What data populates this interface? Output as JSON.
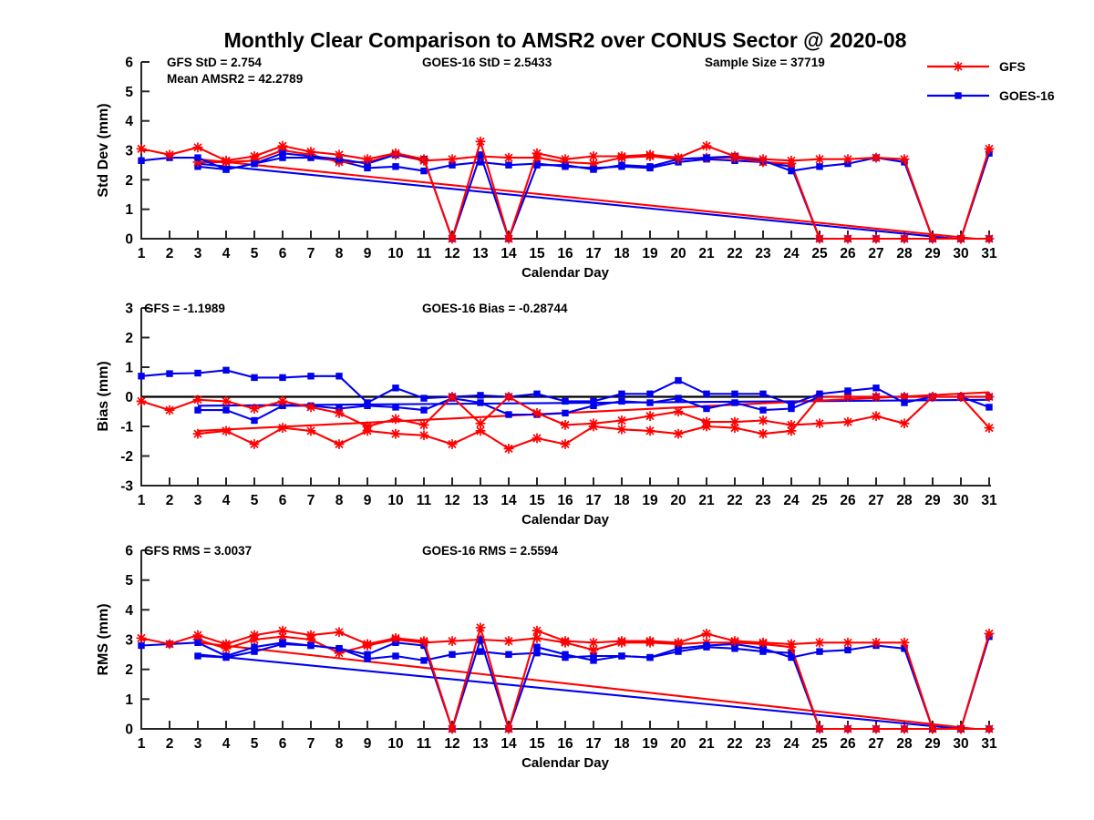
{
  "title": "Monthly Clear Comparison to AMSR2 over CONUS Sector @ 2020-08",
  "colors": {
    "gfs": "#ff0000",
    "goes16": "#0000ee",
    "axis": "#262626",
    "zero_line": "#000000",
    "text": "#000000",
    "background": "#ffffff"
  },
  "legend": {
    "items": [
      {
        "label": "GFS",
        "color": "#ff0000",
        "marker": "asterisk"
      },
      {
        "label": "GOES-16",
        "color": "#0000ee",
        "marker": "square"
      }
    ]
  },
  "x_axis": {
    "label": "Calendar Day",
    "days": [
      1,
      2,
      3,
      4,
      5,
      6,
      7,
      8,
      9,
      10,
      11,
      12,
      13,
      14,
      15,
      16,
      17,
      18,
      19,
      20,
      21,
      22,
      23,
      24,
      25,
      26,
      27,
      28,
      29,
      30,
      31
    ]
  },
  "chart_data": [
    {
      "type": "line",
      "name": "std-dev",
      "ylabel": "Std Dev (mm)",
      "xlabel": "Calendar Day",
      "ylim": [
        0,
        6
      ],
      "yticks": [
        0,
        1,
        2,
        3,
        4,
        5,
        6
      ],
      "grid": false,
      "annotations": [
        {
          "text": "GFS StD = 2.754"
        },
        {
          "text": "Mean AMSR2 = 42.2789"
        },
        {
          "text": "GOES-16 StD = 2.5433"
        },
        {
          "text": "Sample Size = 37719"
        }
      ],
      "series": [
        {
          "name": "GOES-16-trend",
          "color": "#0000ee",
          "marker": "none",
          "x": [
            3,
            29.8
          ],
          "y": [
            2.55,
            0
          ]
        },
        {
          "name": "GFS-trend",
          "color": "#ff0000",
          "marker": "none",
          "x": [
            3,
            30.5
          ],
          "y": [
            2.7,
            0
          ]
        },
        {
          "name": "GOES-16-secondary",
          "color": "#0000ee",
          "marker": "square",
          "x": [
            3,
            4,
            5,
            6,
            7,
            8,
            9,
            10,
            11,
            12,
            13,
            14,
            15,
            16,
            17,
            18,
            19,
            20,
            21,
            22,
            23,
            24,
            25,
            26,
            27,
            28,
            29,
            30,
            31
          ],
          "y": [
            2.45,
            2.35,
            2.55,
            2.75,
            2.75,
            2.65,
            2.4,
            2.45,
            2.3,
            2.5,
            2.6,
            2.5,
            2.55,
            2.45,
            2.4,
            2.45,
            2.4,
            2.6,
            2.7,
            2.65,
            2.6,
            2.45,
            0,
            0,
            0,
            0,
            0,
            0,
            0
          ]
        },
        {
          "name": "GFS-secondary",
          "color": "#ff0000",
          "marker": "asterisk",
          "x": [
            3,
            4,
            5,
            6,
            7,
            8,
            9,
            10,
            11,
            12,
            13,
            14,
            15,
            16,
            17,
            18,
            19,
            20,
            21,
            22,
            23,
            24,
            25,
            26,
            27,
            28,
            29,
            30,
            31
          ],
          "y": [
            2.6,
            2.6,
            2.65,
            3.0,
            2.85,
            2.6,
            2.6,
            2.85,
            2.65,
            2.7,
            2.8,
            2.75,
            2.75,
            2.6,
            2.55,
            2.75,
            2.8,
            2.7,
            2.75,
            2.75,
            2.6,
            2.55,
            0,
            0,
            0,
            0,
            0,
            0,
            0
          ]
        },
        {
          "name": "GOES-16",
          "color": "#0000ee",
          "marker": "square",
          "x": [
            1,
            2,
            3,
            4,
            5,
            6,
            7,
            8,
            9,
            10,
            11,
            12,
            13,
            14,
            15,
            16,
            17,
            18,
            19,
            20,
            21,
            22,
            23,
            24,
            25,
            26,
            27,
            28,
            29,
            30,
            31
          ],
          "y": [
            2.65,
            2.75,
            2.75,
            2.35,
            2.55,
            2.9,
            2.8,
            2.7,
            2.55,
            2.85,
            2.7,
            0,
            2.85,
            0,
            2.5,
            2.5,
            2.35,
            2.5,
            2.45,
            2.7,
            2.75,
            2.8,
            2.65,
            2.3,
            2.45,
            2.55,
            2.75,
            2.6,
            0,
            0,
            2.9
          ]
        },
        {
          "name": "GFS",
          "color": "#ff0000",
          "marker": "asterisk",
          "x": [
            1,
            2,
            3,
            4,
            5,
            6,
            7,
            8,
            9,
            10,
            11,
            12,
            13,
            14,
            15,
            16,
            17,
            18,
            19,
            20,
            21,
            22,
            23,
            24,
            25,
            26,
            27,
            28,
            29,
            30,
            31
          ],
          "y": [
            3.05,
            2.85,
            3.1,
            2.65,
            2.8,
            3.15,
            2.95,
            2.85,
            2.7,
            2.9,
            2.7,
            0,
            3.3,
            0,
            2.9,
            2.7,
            2.8,
            2.8,
            2.85,
            2.75,
            3.15,
            2.8,
            2.7,
            2.65,
            2.7,
            2.7,
            2.75,
            2.7,
            0,
            0,
            3.05
          ]
        }
      ]
    },
    {
      "type": "line",
      "name": "bias",
      "ylabel": "Bias (mm)",
      "xlabel": "Calendar Day",
      "ylim": [
        -3,
        3
      ],
      "yticks": [
        -3,
        -2,
        -1,
        0,
        1,
        2,
        3
      ],
      "grid": false,
      "zero_line": true,
      "annotations": [
        {
          "text": "GFS = -1.1989"
        },
        {
          "text": "GOES-16 Bias = -0.28744"
        }
      ],
      "series": [
        {
          "name": "GOES-16-trend",
          "color": "#0000ee",
          "marker": "none",
          "x": [
            3,
            31
          ],
          "y": [
            -0.3,
            -0.1
          ]
        },
        {
          "name": "GFS-trend",
          "color": "#ff0000",
          "marker": "none",
          "x": [
            3,
            31
          ],
          "y": [
            -1.15,
            0.15
          ]
        },
        {
          "name": "GOES-16-secondary",
          "color": "#0000ee",
          "marker": "square",
          "x": [
            3,
            4,
            5,
            6,
            7,
            8,
            9,
            10,
            11,
            12,
            13,
            14,
            15,
            16,
            17,
            18,
            19,
            20,
            21,
            22,
            23,
            24,
            25,
            26,
            27,
            28,
            29,
            30,
            31
          ],
          "y": [
            -0.45,
            -0.45,
            -0.8,
            -0.3,
            -0.3,
            -0.4,
            -0.3,
            -0.35,
            -0.45,
            -0.05,
            -0.2,
            -0.6,
            -0.6,
            -0.55,
            -0.3,
            -0.15,
            -0.2,
            -0.05,
            -0.4,
            -0.2,
            -0.45,
            -0.4,
            0,
            0,
            0,
            0,
            0,
            0,
            0
          ]
        },
        {
          "name": "GFS-secondary",
          "color": "#ff0000",
          "marker": "asterisk",
          "x": [
            3,
            4,
            5,
            6,
            7,
            8,
            9,
            10,
            11,
            12,
            13,
            14,
            15,
            16,
            17,
            18,
            19,
            20,
            21,
            22,
            23,
            24,
            25,
            26,
            27,
            28,
            29,
            30,
            31
          ],
          "y": [
            -1.25,
            -1.15,
            -1.6,
            -1.05,
            -1.15,
            -1.6,
            -1.15,
            -1.25,
            -1.3,
            -1.6,
            -1.15,
            -1.75,
            -1.4,
            -1.6,
            -1.0,
            -1.1,
            -1.15,
            -1.25,
            -1.0,
            -1.05,
            -1.25,
            -1.15,
            0,
            0,
            0,
            0,
            0,
            0,
            0
          ]
        },
        {
          "name": "GOES-16",
          "color": "#0000ee",
          "marker": "square",
          "x": [
            1,
            2,
            3,
            4,
            5,
            6,
            7,
            8,
            9,
            10,
            11,
            12,
            13,
            14,
            15,
            16,
            17,
            18,
            19,
            20,
            21,
            22,
            23,
            24,
            25,
            26,
            27,
            28,
            29,
            30,
            31
          ],
          "y": [
            0.7,
            0.78,
            0.8,
            0.9,
            0.65,
            0.65,
            0.7,
            0.7,
            -0.2,
            0.3,
            -0.05,
            0,
            0.05,
            0,
            0.1,
            -0.15,
            -0.15,
            0.1,
            0.1,
            0.55,
            0.1,
            0.1,
            0.1,
            -0.25,
            0.1,
            0.2,
            0.3,
            -0.2,
            0,
            0,
            -0.35
          ]
        },
        {
          "name": "GFS",
          "color": "#ff0000",
          "marker": "asterisk",
          "x": [
            1,
            2,
            3,
            4,
            5,
            6,
            7,
            8,
            9,
            10,
            11,
            12,
            13,
            14,
            15,
            16,
            17,
            18,
            19,
            20,
            21,
            22,
            23,
            24,
            25,
            26,
            27,
            28,
            29,
            30,
            31
          ],
          "y": [
            -0.15,
            -0.45,
            -0.1,
            -0.15,
            -0.4,
            -0.15,
            -0.35,
            -0.55,
            -1.0,
            -0.75,
            -0.95,
            0,
            -0.9,
            0,
            -0.55,
            -0.95,
            -0.9,
            -0.8,
            -0.65,
            -0.5,
            -0.85,
            -0.85,
            -0.8,
            -0.95,
            -0.9,
            -0.85,
            -0.65,
            -0.9,
            0,
            0,
            -1.05
          ]
        }
      ]
    },
    {
      "type": "line",
      "name": "rms",
      "ylabel": "RMS (mm)",
      "xlabel": "Calendar Day",
      "ylim": [
        0,
        6
      ],
      "yticks": [
        0,
        1,
        2,
        3,
        4,
        5,
        6
      ],
      "grid": false,
      "annotations": [
        {
          "text": "GFS RMS = 3.0037"
        },
        {
          "text": "GOES-16 RMS = 2.5594"
        }
      ],
      "series": [
        {
          "name": "GOES-16-trend",
          "color": "#0000ee",
          "marker": "none",
          "x": [
            3,
            30
          ],
          "y": [
            2.5,
            0
          ]
        },
        {
          "name": "GFS-trend",
          "color": "#ff0000",
          "marker": "none",
          "x": [
            3,
            30.5
          ],
          "y": [
            2.9,
            0
          ]
        },
        {
          "name": "GOES-16-secondary",
          "color": "#0000ee",
          "marker": "square",
          "x": [
            3,
            4,
            5,
            6,
            7,
            8,
            9,
            10,
            11,
            12,
            13,
            14,
            15,
            16,
            17,
            18,
            19,
            20,
            21,
            22,
            23,
            24,
            25,
            26,
            27,
            28,
            29,
            30,
            31
          ],
          "y": [
            2.45,
            2.4,
            2.6,
            2.85,
            2.8,
            2.7,
            2.35,
            2.45,
            2.3,
            2.5,
            2.6,
            2.5,
            2.55,
            2.4,
            2.45,
            2.45,
            2.4,
            2.6,
            2.75,
            2.7,
            2.6,
            2.55,
            0,
            0,
            0,
            0,
            0,
            0,
            0
          ]
        },
        {
          "name": "GFS-secondary",
          "color": "#ff0000",
          "marker": "asterisk",
          "x": [
            3,
            4,
            5,
            6,
            7,
            8,
            9,
            10,
            11,
            12,
            13,
            14,
            15,
            16,
            17,
            18,
            19,
            20,
            21,
            22,
            23,
            24,
            25,
            26,
            27,
            28,
            29,
            30,
            31
          ],
          "y": [
            3.0,
            2.7,
            3.0,
            3.1,
            3.0,
            2.55,
            2.8,
            3.0,
            2.9,
            2.95,
            3.0,
            2.95,
            3.05,
            2.9,
            2.65,
            2.9,
            2.9,
            2.85,
            2.9,
            2.9,
            2.85,
            2.75,
            0,
            0,
            0,
            0,
            0,
            0,
            0
          ]
        },
        {
          "name": "GOES-16",
          "color": "#0000ee",
          "marker": "square",
          "x": [
            1,
            2,
            3,
            4,
            5,
            6,
            7,
            8,
            9,
            10,
            11,
            12,
            13,
            14,
            15,
            16,
            17,
            18,
            19,
            20,
            21,
            22,
            23,
            24,
            25,
            26,
            27,
            28,
            29,
            30,
            31
          ],
          "y": [
            2.8,
            2.85,
            2.9,
            2.45,
            2.75,
            2.9,
            2.8,
            2.7,
            2.5,
            2.9,
            2.8,
            0,
            3.0,
            0,
            2.75,
            2.5,
            2.3,
            2.45,
            2.4,
            2.7,
            2.8,
            2.85,
            2.7,
            2.4,
            2.6,
            2.65,
            2.8,
            2.7,
            0,
            0,
            3.1
          ]
        },
        {
          "name": "GFS",
          "color": "#ff0000",
          "marker": "asterisk",
          "x": [
            1,
            2,
            3,
            4,
            5,
            6,
            7,
            8,
            9,
            10,
            11,
            12,
            13,
            14,
            15,
            16,
            17,
            18,
            19,
            20,
            21,
            22,
            23,
            24,
            25,
            26,
            27,
            28,
            29,
            30,
            31
          ],
          "y": [
            3.05,
            2.85,
            3.15,
            2.85,
            3.15,
            3.3,
            3.15,
            3.25,
            2.85,
            3.05,
            2.95,
            0,
            3.4,
            0,
            3.3,
            2.95,
            2.9,
            2.95,
            2.95,
            2.9,
            3.2,
            2.95,
            2.9,
            2.85,
            2.9,
            2.9,
            2.9,
            2.9,
            0,
            0,
            3.2
          ]
        }
      ]
    }
  ]
}
